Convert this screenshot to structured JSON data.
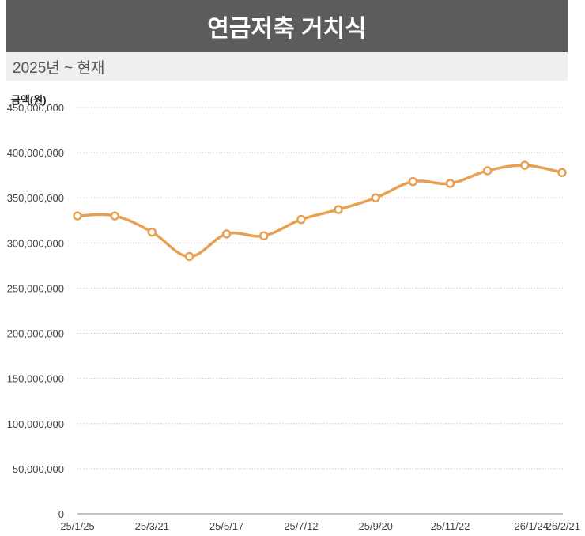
{
  "header": {
    "title": "연금저축 거치식"
  },
  "subheader": {
    "period": "2025년 ~ 현재"
  },
  "chart_data": {
    "type": "line",
    "title": "연금저축 거치식",
    "subtitle": "2025년 ~ 현재",
    "ylabel": "금액(원)",
    "xlabel": "",
    "ylim": [
      0,
      450000000
    ],
    "y_ticks": [
      0,
      50000000,
      100000000,
      150000000,
      200000000,
      250000000,
      300000000,
      350000000,
      400000000,
      450000000
    ],
    "y_tick_labels": [
      "0",
      "50,000,000",
      "100,000,000",
      "150,000,000",
      "200,000,000",
      "250,000,000",
      "300,000,000",
      "350,000,000",
      "400,000,000",
      "450,000,000"
    ],
    "x_tick_labels": [
      "25/1/25",
      "25/3/21",
      "25/5/17",
      "25/7/12",
      "25/9/20",
      "25/11/22",
      "26/1/24",
      "26/2/21"
    ],
    "x_tick_indices": [
      0,
      2,
      4,
      6,
      8,
      10,
      12,
      13
    ],
    "grid": true,
    "line_color": "#e8a050",
    "series": [
      {
        "values": [
          330000000,
          330000000,
          312000000,
          285000000,
          310000000,
          308000000,
          326000000,
          337000000,
          350000000,
          368000000,
          366000000,
          380000000,
          386000000,
          378000000
        ]
      }
    ]
  }
}
